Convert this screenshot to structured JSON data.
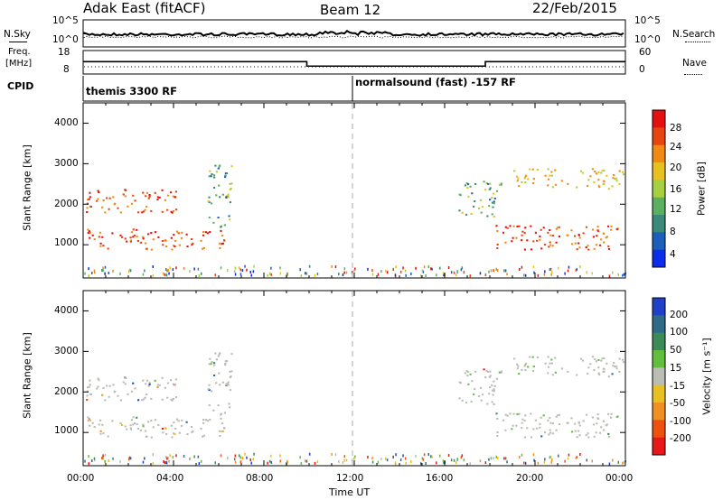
{
  "header": {
    "site": "Adak East (fitACF)",
    "beam": "Beam 12",
    "date": "22/Feb/2015"
  },
  "panel_labels": {
    "nsky": "N.Sky",
    "freq_line1": "Freq.",
    "freq_line2": "[MHz]",
    "cpid": "CPID",
    "nsearch": "N.Search",
    "nave": "Nave",
    "power_axis": "Power [dB]",
    "velocity_axis": "Velocity [m s⁻¹]",
    "slant_range": "Slant Range [km]",
    "time_axis": "Time UT"
  },
  "noise_axis_ticks": [
    "10^5",
    "10^0"
  ],
  "freq_axis_ticks": [
    "18",
    "8"
  ],
  "nave_axis_ticks": [
    "60",
    "0"
  ],
  "cpid": [
    "themis 3300 RF",
    "normalsound (fast) -157 RF"
  ],
  "time_ticks": [
    "00:00",
    "04:00",
    "08:00",
    "12:00",
    "16:00",
    "20:00",
    "00:00"
  ],
  "range_ticks": [
    "1000",
    "2000",
    "3000",
    "4000"
  ],
  "power_scale": {
    "labels": [
      "4",
      "8",
      "12",
      "16",
      "20",
      "24",
      "28"
    ],
    "colors": [
      "#0a2ee8",
      "#1c5fb8",
      "#3a8a7a",
      "#5bb060",
      "#a6d040",
      "#e8c020",
      "#f08a10",
      "#e84410",
      "#e41010"
    ]
  },
  "velocity_scale": {
    "labels": [
      "200",
      "100",
      "50",
      "15",
      "-15",
      "-50",
      "-100",
      "-200"
    ],
    "colors": [
      "#2040c8",
      "#2f6a88",
      "#3c8a56",
      "#62be3c",
      "#b9bdb4",
      "#e8c020",
      "#f09020",
      "#ee5010",
      "#e81818"
    ]
  },
  "chart_data": {
    "type": "heatmap",
    "x_range_ut_hours": [
      0,
      24
    ],
    "y_range_km": [
      180,
      4500
    ],
    "frequency_mhz": [
      {
        "from": 0,
        "to": 9.9,
        "value": 12.5
      },
      {
        "from": 9.9,
        "to": 17.8,
        "value": 10.6
      },
      {
        "from": 17.8,
        "to": 24,
        "value": 12.5
      }
    ],
    "cpid_changes_ut": [
      0,
      12
    ],
    "power_echo_regions": [
      {
        "t0": 0.1,
        "t1": 6.3,
        "r0": 900,
        "r1": 1400,
        "level": "high"
      },
      {
        "t0": 0.1,
        "t1": 4.2,
        "r0": 1800,
        "r1": 2400,
        "level": "high"
      },
      {
        "t0": 5.5,
        "t1": 6.6,
        "r0": 1400,
        "r1": 3000,
        "level": "low"
      },
      {
        "t0": 18.2,
        "t1": 23.9,
        "r0": 900,
        "r1": 1500,
        "level": "high"
      },
      {
        "t0": 19.0,
        "t1": 23.9,
        "r0": 2400,
        "r1": 2900,
        "level": "mid"
      },
      {
        "t0": 16.6,
        "t1": 18.5,
        "r0": 1700,
        "r1": 2600,
        "level": "low"
      }
    ]
  }
}
